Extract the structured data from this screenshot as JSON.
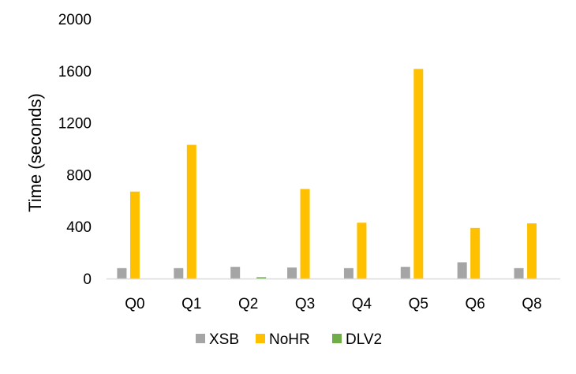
{
  "chart_data": {
    "type": "bar",
    "title": "",
    "xlabel": "",
    "ylabel": "Time (seconds)",
    "ylim": [
      0,
      2000
    ],
    "yticks": [
      0,
      400,
      800,
      1200,
      1600,
      2000
    ],
    "grid": false,
    "legend_position": "bottom",
    "categories": [
      "Q0",
      "Q1",
      "Q2",
      "Q3",
      "Q4",
      "Q5",
      "Q6",
      "Q8"
    ],
    "series": [
      {
        "name": "XSB",
        "color": "#a5a5a5",
        "values": [
          80,
          80,
          90,
          85,
          80,
          90,
          125,
          80
        ]
      },
      {
        "name": "NoHR",
        "color": "#ffc000",
        "values": [
          670,
          1030,
          0,
          690,
          430,
          1615,
          390,
          425
        ]
      },
      {
        "name": "DLV2",
        "color": "#70ad47",
        "values": [
          0,
          0,
          10,
          0,
          0,
          0,
          0,
          0
        ]
      }
    ]
  }
}
